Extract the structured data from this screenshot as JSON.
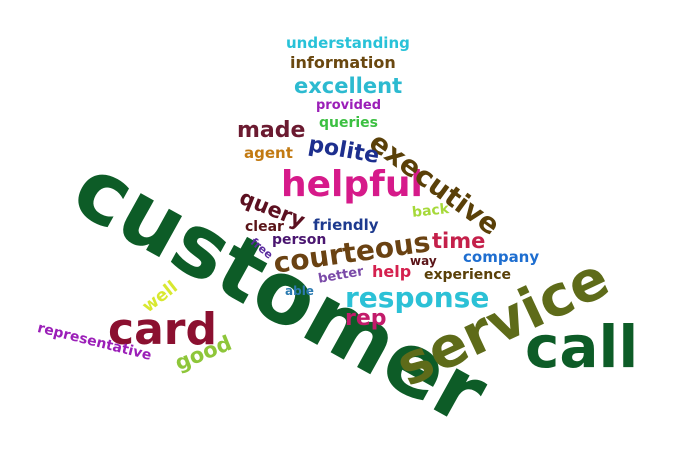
{
  "words": [
    {
      "text": "customer",
      "color": "#0d5c27"
    },
    {
      "text": "service",
      "color": "#5e6b19"
    },
    {
      "text": "call",
      "color": "#0d5c27"
    },
    {
      "text": "card",
      "color": "#8b1030"
    },
    {
      "text": "response",
      "color": "#2cc1d6"
    },
    {
      "text": "helpful",
      "color": "#d61a8a"
    },
    {
      "text": "courteous",
      "color": "#6a4212"
    },
    {
      "text": "executive",
      "color": "#5a4008"
    },
    {
      "text": "polite",
      "color": "#1d2f8e"
    },
    {
      "text": "made",
      "color": "#6b1a30"
    },
    {
      "text": "query",
      "color": "#5c1020"
    },
    {
      "text": "time",
      "color": "#c4204a"
    },
    {
      "text": "rep",
      "color": "#c21b6a"
    },
    {
      "text": "excellent",
      "color": "#2cbad0"
    },
    {
      "text": "information",
      "color": "#6a4810"
    },
    {
      "text": "understanding",
      "color": "#28c2d8"
    },
    {
      "text": "provided",
      "color": "#9b1fb8"
    },
    {
      "text": "queries",
      "color": "#3cc042"
    },
    {
      "text": "agent",
      "color": "#c27a12"
    },
    {
      "text": "good",
      "color": "#8ec63a"
    },
    {
      "text": "well",
      "color": "#d8e830"
    },
    {
      "text": "representative",
      "color": "#9b1fb8"
    },
    {
      "text": "friendly",
      "color": "#1d3a8e"
    },
    {
      "text": "person",
      "color": "#4a1670"
    },
    {
      "text": "clear",
      "color": "#5a1418"
    },
    {
      "text": "back",
      "color": "#a6d93a"
    },
    {
      "text": "help",
      "color": "#d4204e"
    },
    {
      "text": "company",
      "color": "#1e6ed0"
    },
    {
      "text": "experience",
      "color": "#5a4008"
    },
    {
      "text": "way",
      "color": "#5a1418"
    },
    {
      "text": "free",
      "color": "#5a2a9e"
    },
    {
      "text": "better",
      "color": "#7a4aa8"
    },
    {
      "text": "able",
      "color": "#2a7ab0"
    }
  ]
}
